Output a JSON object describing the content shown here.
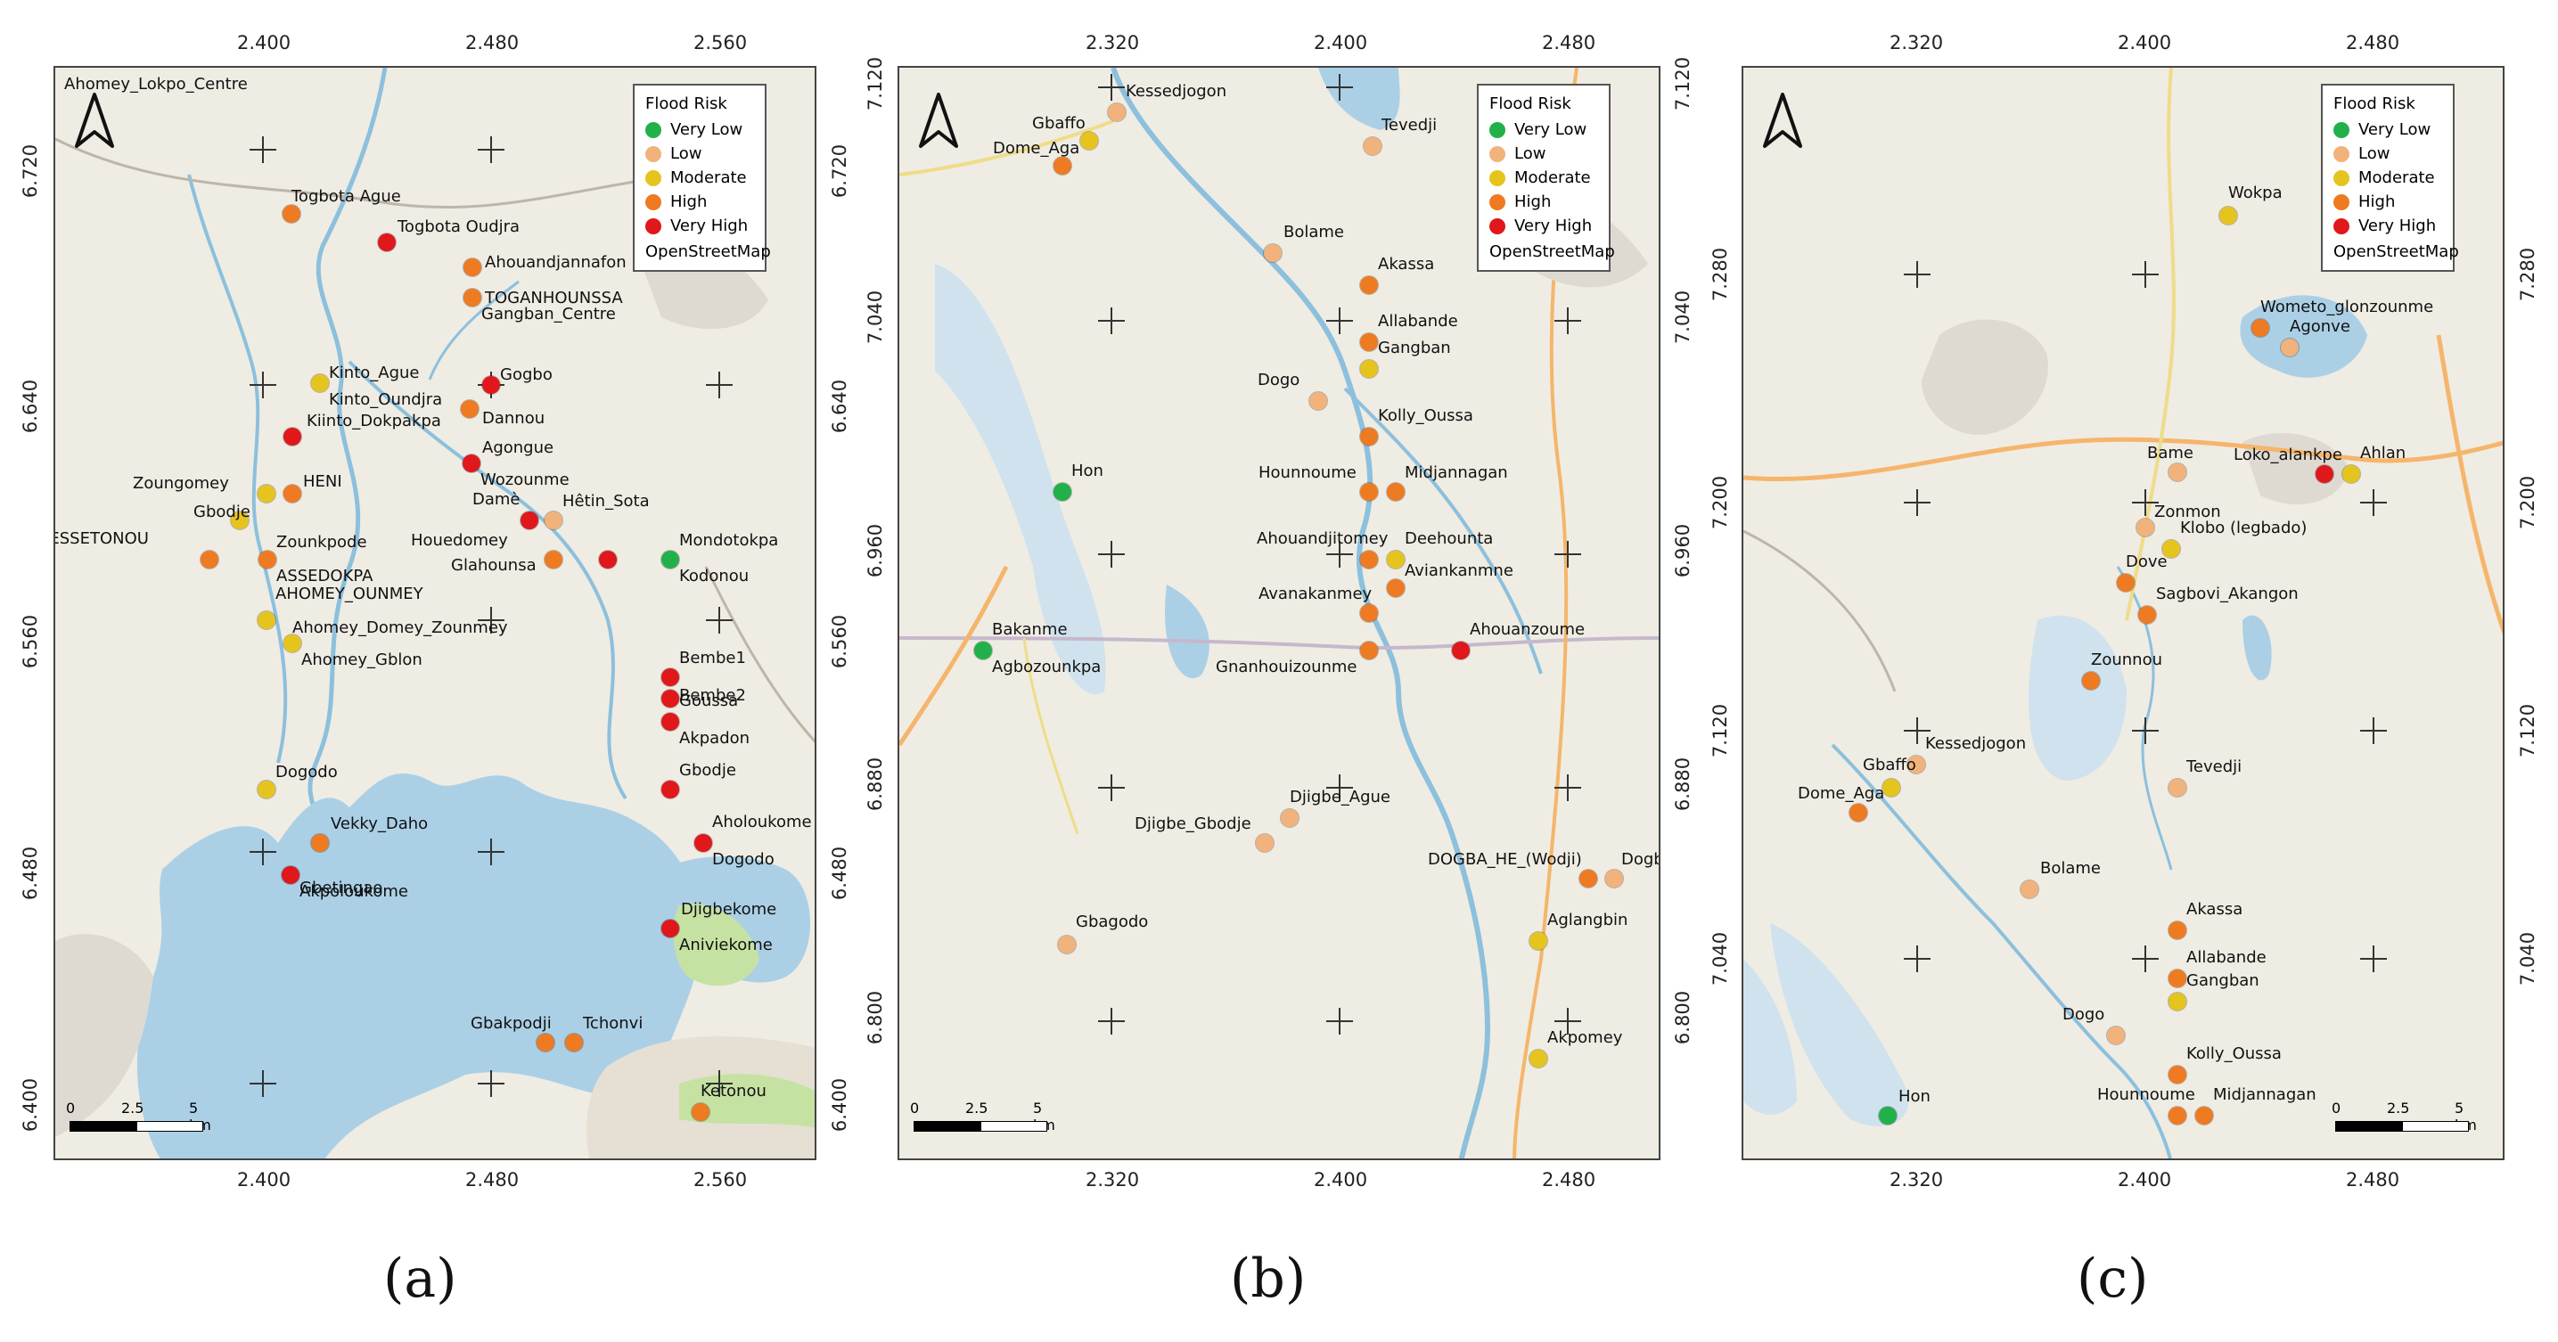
{
  "colors": {
    "risk": {
      "very_low": "#22b04a",
      "low": "#f2b27c",
      "moderate": "#e5c41e",
      "high": "#ee7a22",
      "very_high": "#e0171b"
    },
    "water": "#abd0e6",
    "land": "#efece3",
    "road": "#f5b56b"
  },
  "legend": {
    "title": "Flood Risk",
    "items": [
      {
        "label": "Very Low",
        "color": "#22b04a"
      },
      {
        "label": "Low",
        "color": "#f2b27c"
      },
      {
        "label": "Moderate",
        "color": "#e5c41e"
      },
      {
        "label": "High",
        "color": "#ee7a22"
      },
      {
        "label": "Very High",
        "color": "#e0171b"
      }
    ],
    "basemap": "OpenStreetMap"
  },
  "scalebar": {
    "labels": [
      "0",
      "2.5",
      "5 km"
    ]
  },
  "panels": [
    {
      "caption": "(a)",
      "x_ticks": [
        "2.400",
        "2.480",
        "2.560"
      ],
      "y_ticks": [
        "6.720",
        "6.640",
        "6.560",
        "6.480",
        "6.400"
      ],
      "points": [
        {
          "name": "Togbota Ague",
          "risk": "high"
        },
        {
          "name": "Togbota Oudjra",
          "risk": "very_high"
        },
        {
          "name": "Ahouandjannafon",
          "risk": "high"
        },
        {
          "name": "TOGANHOUNSSA",
          "risk": "high"
        },
        {
          "name": "Gangban_Centre",
          "risk": ""
        },
        {
          "name": "Kinto_Ague",
          "risk": "moderate"
        },
        {
          "name": "Kinto_Oundjra",
          "risk": ""
        },
        {
          "name": "Gogbo",
          "risk": "very_high"
        },
        {
          "name": "Kiinto_Dokpakpa",
          "risk": "very_high"
        },
        {
          "name": "Dannou",
          "risk": "high"
        },
        {
          "name": "Agongue",
          "risk": "very_high"
        },
        {
          "name": "Wozounme",
          "risk": ""
        },
        {
          "name": "Zoungomey",
          "risk": "moderate"
        },
        {
          "name": "HENI",
          "risk": "high"
        },
        {
          "name": "Gbodje",
          "risk": "moderate"
        },
        {
          "name": "Damè",
          "risk": "very_high"
        },
        {
          "name": "Hêtin_Sota",
          "risk": "low"
        },
        {
          "name": "BESSETONOU",
          "risk": "high"
        },
        {
          "name": "Zounkpode",
          "risk": "high"
        },
        {
          "name": "ASSEDOKPA",
          "risk": ""
        },
        {
          "name": "Ahomey_Lokpo_Centre",
          "risk": ""
        },
        {
          "name": "Houedomey",
          "risk": "high"
        },
        {
          "name": "Glahounsa",
          "risk": "very_high"
        },
        {
          "name": "Mondotokpa",
          "risk": "very_low"
        },
        {
          "name": "Kodonou",
          "risk": ""
        },
        {
          "name": "AHOMEY_OUNMEY",
          "risk": "moderate"
        },
        {
          "name": "Ahomey_Domey_Zounmey",
          "risk": "moderate"
        },
        {
          "name": "Ahomey_Gblon",
          "risk": ""
        },
        {
          "name": "Bembe1",
          "risk": "very_high"
        },
        {
          "name": "Bembe2",
          "risk": "very_high"
        },
        {
          "name": "Goussa",
          "risk": "very_high"
        },
        {
          "name": "Akpadon",
          "risk": ""
        },
        {
          "name": "Gbodje",
          "risk": "very_high"
        },
        {
          "name": "Dogodo",
          "risk": "moderate"
        },
        {
          "name": "Vekky_Daho",
          "risk": "high"
        },
        {
          "name": "Gbetingao",
          "risk": "very_high"
        },
        {
          "name": "Akpoloukome",
          "risk": ""
        },
        {
          "name": "Aholoukome",
          "risk": "very_high"
        },
        {
          "name": "Dogodo",
          "risk": ""
        },
        {
          "name": "Djigbekome",
          "risk": "very_high"
        },
        {
          "name": "Aniviekome",
          "risk": ""
        },
        {
          "name": "Gbakpodji",
          "risk": "high"
        },
        {
          "name": "Tchonvi",
          "risk": "high"
        },
        {
          "name": "Ketonou",
          "risk": "high"
        }
      ]
    },
    {
      "caption": "(b)",
      "x_ticks": [
        "2.320",
        "2.400",
        "2.480"
      ],
      "y_ticks": [
        "7.120",
        "7.040",
        "6.960",
        "6.880",
        "6.800"
      ],
      "points": [
        {
          "name": "Kessedjogon",
          "risk": "low"
        },
        {
          "name": "Gbaffo",
          "risk": "moderate"
        },
        {
          "name": "Dome_Aga",
          "risk": "high"
        },
        {
          "name": "Tevedji",
          "risk": "low"
        },
        {
          "name": "Bolame",
          "risk": "low"
        },
        {
          "name": "Akassa",
          "risk": "high"
        },
        {
          "name": "Allabande",
          "risk": "high"
        },
        {
          "name": "Gangban",
          "risk": "moderate"
        },
        {
          "name": "Dogo",
          "risk": "low"
        },
        {
          "name": "Kolly_Oussa",
          "risk": "high"
        },
        {
          "name": "Hon",
          "risk": "very_low"
        },
        {
          "name": "Hounnoume",
          "risk": "high"
        },
        {
          "name": "Midjannagan",
          "risk": "high"
        },
        {
          "name": "Ahouandjitomey",
          "risk": "high"
        },
        {
          "name": "Deehounta",
          "risk": "moderate"
        },
        {
          "name": "Aviankanmne",
          "risk": "high"
        },
        {
          "name": "Avanakanmey",
          "risk": "high"
        },
        {
          "name": "Bakanme",
          "risk": "very_low"
        },
        {
          "name": "Agbozounkpa",
          "risk": ""
        },
        {
          "name": "Gnanhouizounme",
          "risk": "high"
        },
        {
          "name": "Ahouanzoume",
          "risk": "very_high"
        },
        {
          "name": "Djigbe_Ague",
          "risk": "low"
        },
        {
          "name": "Djigbe_Gbodje",
          "risk": "low"
        },
        {
          "name": "DOGBA_HE_(Wodji)",
          "risk": "high"
        },
        {
          "name": "Dogba",
          "risk": "low"
        },
        {
          "name": "Aglangbin",
          "risk": "moderate"
        },
        {
          "name": "Gbagodo",
          "risk": "low"
        },
        {
          "name": "Akpomey",
          "risk": "moderate"
        }
      ]
    },
    {
      "caption": "(c)",
      "x_ticks": [
        "2.320",
        "2.400",
        "2.480"
      ],
      "y_ticks": [
        "7.280",
        "7.200",
        "7.120",
        "7.040"
      ],
      "points": [
        {
          "name": "Wokpa",
          "risk": "moderate"
        },
        {
          "name": "Wometo_glonzounme",
          "risk": "high"
        },
        {
          "name": "Agonve",
          "risk": "low"
        },
        {
          "name": "Bame",
          "risk": "low"
        },
        {
          "name": "Loko_alankpe",
          "risk": "very_high"
        },
        {
          "name": "Ahlan",
          "risk": "moderate"
        },
        {
          "name": "Zonmon",
          "risk": "low"
        },
        {
          "name": "Klobo (legbado)",
          "risk": "moderate"
        },
        {
          "name": "Dove",
          "risk": "high"
        },
        {
          "name": "Sagbovi_Akangon",
          "risk": "high"
        },
        {
          "name": "Zounnou",
          "risk": "high"
        },
        {
          "name": "Kessedjogon",
          "risk": "low"
        },
        {
          "name": "Gbaffo",
          "risk": "moderate"
        },
        {
          "name": "Dome_Aga",
          "risk": "high"
        },
        {
          "name": "Tevedji",
          "risk": "low"
        },
        {
          "name": "Bolame",
          "risk": "low"
        },
        {
          "name": "Akassa",
          "risk": "high"
        },
        {
          "name": "Allabande",
          "risk": "high"
        },
        {
          "name": "Gangban",
          "risk": "moderate"
        },
        {
          "name": "Dogo",
          "risk": "low"
        },
        {
          "name": "Kolly_Oussa",
          "risk": "high"
        },
        {
          "name": "Hon",
          "risk": "very_low"
        },
        {
          "name": "Hounnoume",
          "risk": "high"
        },
        {
          "name": "Midjannagan",
          "risk": "high"
        }
      ]
    }
  ]
}
